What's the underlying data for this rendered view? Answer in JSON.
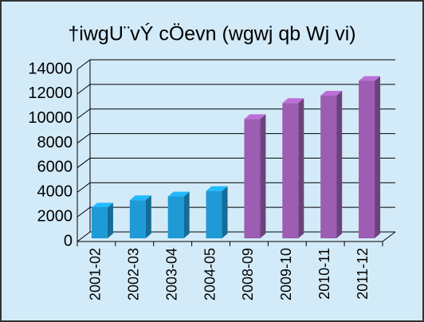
{
  "chart_data": {
    "type": "bar3d",
    "title": "†iwgU¨vÝ cÖevn (wgwj qb Wj vi)",
    "categories": [
      "2001-02",
      "2002-03",
      "2003-04",
      "2004-05",
      "2008-09",
      "2009-10",
      "2010-11",
      "2011-12"
    ],
    "values": [
      2500,
      3100,
      3400,
      3850,
      9700,
      11000,
      11600,
      12800
    ],
    "colors": [
      "#1e9ad6",
      "#1e9ad6",
      "#1e9ad6",
      "#1e9ad6",
      "#9c5db3",
      "#9c5db3",
      "#9c5db3",
      "#9c5db3"
    ],
    "ylim": [
      0,
      14000
    ],
    "yticks": [
      0,
      2000,
      4000,
      6000,
      8000,
      10000,
      12000,
      14000
    ],
    "grid": true
  }
}
